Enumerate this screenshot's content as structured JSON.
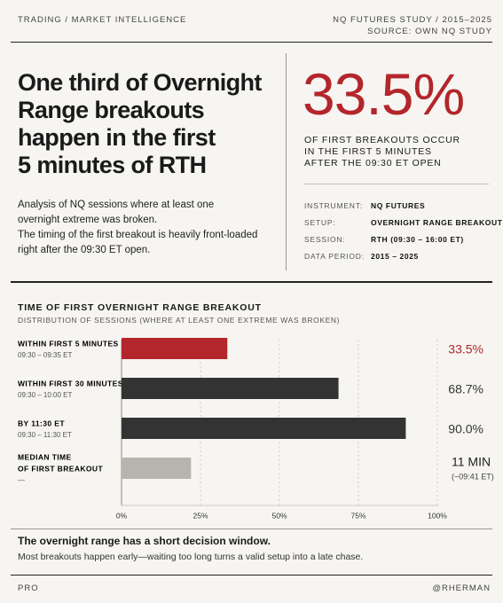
{
  "header": {
    "left": "TRADING / MARKET INTELLIGENCE",
    "right_top": "NQ FUTURES STUDY / 2015–2025",
    "right_bottom": "SOURCE: OWN NQ STUDY"
  },
  "headline": [
    "One third of Overnight",
    "Range breakouts",
    "happen in the first",
    "5 minutes of RTH"
  ],
  "intro": [
    "Analysis of NQ sessions where at least one",
    "overnight extreme was broken.",
    "The timing of the first breakout is heavily front-loaded",
    "right after the 09:30 ET open."
  ],
  "stat": {
    "value": "33.5%",
    "caption": [
      "OF FIRST BREAKOUTS OCCUR",
      "IN THE FIRST 5 MINUTES",
      "AFTER THE 09:30 ET OPEN"
    ]
  },
  "details": [
    [
      "INSTRUMENT:",
      "NQ FUTURES"
    ],
    [
      "SETUP:",
      "OVERNIGHT RANGE BREAKOUT"
    ],
    [
      "SESSION:",
      "RTH (09:30 – 16:00 ET)"
    ],
    [
      "DATA PERIOD:",
      "2015 – 2025"
    ]
  ],
  "chart_data": {
    "type": "bar",
    "orientation": "horizontal",
    "title": "TIME OF FIRST OVERNIGHT RANGE BREAKOUT",
    "subtitle": "DISTRIBUTION OF SESSIONS (WHERE AT LEAST ONE EXTREME WAS BROKEN)",
    "categories": [
      "WITHIN FIRST 5 MINUTES",
      "WITHIN FIRST 30 MINUTES",
      "BY 11:30 ET"
    ],
    "sublabels": [
      "09:30 – 09:35 ET",
      "09:30 – 10:00 ET",
      "09:30 – 11:30 ET"
    ],
    "values": [
      33.5,
      68.7,
      90.0
    ],
    "value_labels": [
      "33.5%",
      "68.7%",
      "90.0%"
    ],
    "colors": [
      "#b3262b",
      "#333333",
      "#333333"
    ],
    "median": {
      "label": [
        "MEDIAN TIME",
        "OF FIRST BREAKOUT"
      ],
      "sublabel": "—",
      "value": 22,
      "printed": "11 MIN",
      "time": "(~09:41 ET)",
      "color": "#b7b4ad"
    },
    "xlim": [
      0,
      100
    ],
    "xticks": [
      {
        "value": 0,
        "label": "0%"
      },
      {
        "value": 25,
        "label": "25%"
      },
      {
        "value": 50,
        "label": "50%"
      },
      {
        "value": 75,
        "label": "75%"
      },
      {
        "value": 100,
        "label": "100%"
      }
    ],
    "grid": true
  },
  "takeaway": {
    "title": "The overnight range has a short decision window.",
    "text": "Most breakouts happen early—waiting too long turns a valid setup into a late chase."
  },
  "footer": {
    "left": "PRO",
    "right": "@RHERMAN"
  }
}
